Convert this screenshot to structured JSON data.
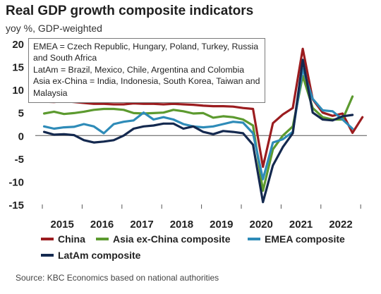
{
  "title": "Real GDP growth composite indicators",
  "subtitle": "yoy %, GDP-weighted",
  "source": "Source: KBC Economics based on national authorities",
  "note_lines": [
    "EMEA = Czech Republic, Hungary, Poland, Turkey, Russia and South Africa",
    "LatAm = Brazil, Mexico, Chile, Argentina and Colombia",
    "Asia ex-China = India, Indonesia, South Korea, Taiwan and Malaysia"
  ],
  "chart_data": {
    "type": "line",
    "title": "Real GDP growth composite indicators",
    "ylabel": "yoy %, GDP-weighted",
    "ylim": [
      -15,
      20
    ],
    "yticks": [
      20,
      15,
      10,
      5,
      0,
      -5,
      -10,
      -15
    ],
    "x_start": "2014Q3",
    "x_step": "quarter",
    "year_labels": [
      "2015",
      "2016",
      "2017",
      "2018",
      "2019",
      "2020",
      "2021",
      "2022"
    ],
    "grid": false,
    "legend_position": "bottom",
    "series": [
      {
        "name": "China",
        "color": "#9b1c1f",
        "values": [
          7.4,
          7.3,
          7.5,
          7.3,
          7.1,
          6.9,
          6.9,
          6.8,
          6.8,
          7.0,
          6.9,
          6.9,
          6.8,
          6.9,
          6.8,
          6.7,
          6.5,
          6.4,
          6.4,
          6.3,
          6.0,
          5.8,
          -6.8,
          2.7,
          4.6,
          6.0,
          18.9,
          7.9,
          5.0,
          4.3,
          4.8,
          0.6,
          4.0
        ]
      },
      {
        "name": "Asia ex-China composite",
        "color": "#5c9a2f",
        "values": [
          4.8,
          5.2,
          4.7,
          4.9,
          5.2,
          5.6,
          5.8,
          5.8,
          5.6,
          4.9,
          4.8,
          4.9,
          5.0,
          5.6,
          5.3,
          4.8,
          4.9,
          3.9,
          4.2,
          4.0,
          3.5,
          2.2,
          -12.0,
          -3.0,
          0.0,
          2.0,
          13.0,
          6.0,
          4.0,
          3.5,
          3.5,
          8.5
        ]
      },
      {
        "name": "EMEA composite",
        "color": "#2e8bb8",
        "values": [
          2.0,
          1.5,
          1.8,
          1.9,
          2.5,
          2.0,
          0.5,
          2.5,
          3.0,
          3.3,
          5.0,
          3.5,
          4.0,
          3.5,
          2.5,
          2.0,
          1.8,
          2.0,
          2.5,
          3.0,
          2.8,
          0.5,
          -9.5,
          -1.5,
          -0.8,
          0.8,
          14.5,
          8.0,
          5.5,
          5.3,
          3.5,
          1.5
        ]
      },
      {
        "name": "LatAm composite",
        "color": "#14294f",
        "values": [
          0.8,
          0.2,
          0.3,
          0.1,
          -1.0,
          -1.5,
          -1.3,
          -1.0,
          0.0,
          1.5,
          2.0,
          2.2,
          2.6,
          2.6,
          1.5,
          2.0,
          0.8,
          0.3,
          1.0,
          0.8,
          0.5,
          -2.0,
          -14.5,
          -6.5,
          -2.5,
          0.5,
          16.5,
          5.0,
          3.5,
          3.3,
          4.2,
          4.5
        ]
      }
    ]
  }
}
